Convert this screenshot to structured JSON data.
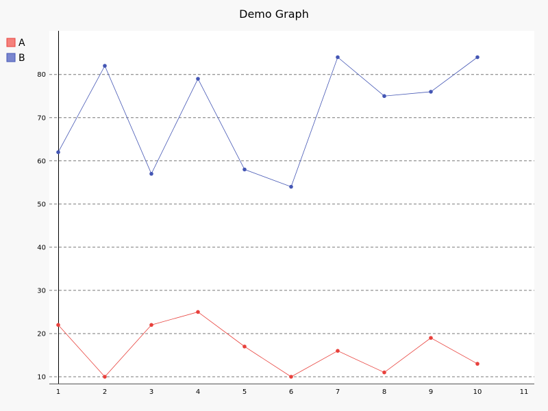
{
  "chart_data": {
    "type": "line",
    "title": "Demo Graph",
    "xlabel": "",
    "ylabel": "",
    "xlim": [
      1,
      11
    ],
    "ylim": [
      8.5,
      85.5
    ],
    "x_ticks": [
      1,
      2,
      3,
      4,
      5,
      6,
      7,
      8,
      9,
      10,
      11
    ],
    "y_ticks": [
      10,
      20,
      30,
      40,
      50,
      60,
      70,
      80
    ],
    "grid": "horizontal dashed",
    "legend_position": "top-left",
    "series": [
      {
        "name": "A",
        "color": "#e8413c",
        "x": [
          1,
          2,
          3,
          4,
          5,
          6,
          7,
          8,
          9,
          10
        ],
        "values": [
          22,
          10,
          22,
          25,
          17,
          10,
          16,
          11,
          19,
          13
        ]
      },
      {
        "name": "B",
        "color": "#4456b4",
        "x": [
          1,
          2,
          3,
          4,
          5,
          6,
          7,
          8,
          9,
          10
        ],
        "values": [
          62,
          82,
          57,
          79,
          58,
          54,
          84,
          75,
          76,
          84
        ]
      }
    ]
  },
  "colors": {
    "background": "#f8f8f8",
    "plot_background": "#ffffff",
    "grid": "#777777",
    "axis": "#000000",
    "legend_A_fill": "#f5817c",
    "legend_B_fill": "#7a86cf"
  }
}
